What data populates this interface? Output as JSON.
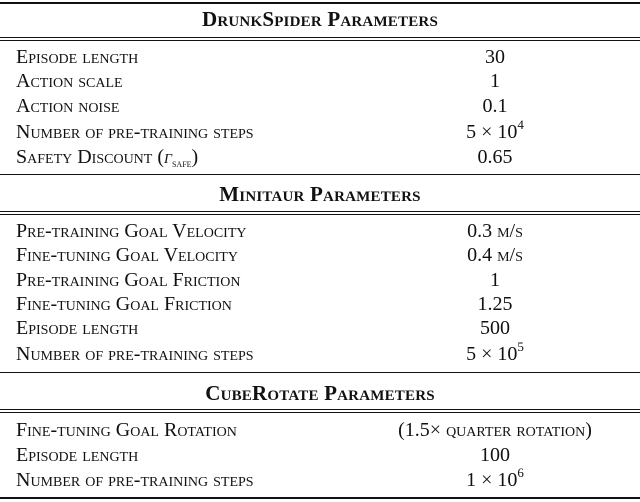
{
  "sections": [
    {
      "title": "DrunkSpider Parameters",
      "rows": [
        {
          "label": "Episode length",
          "value": "30"
        },
        {
          "label": "Action scale",
          "value": "1"
        },
        {
          "label": "Action noise",
          "value": "0.1"
        },
        {
          "label": "Number of pre-training steps",
          "value_base": "5 × 10",
          "value_exp": "4"
        },
        {
          "label_main": "Safety Discount (",
          "label_symbol": "γ",
          "label_sub": "safe",
          "label_close": ")",
          "value": "0.65"
        }
      ]
    },
    {
      "title": "Minitaur Parameters",
      "rows": [
        {
          "label": "Pre-training Goal Velocity",
          "value_num": "0.3",
          "value_unit": "m/s"
        },
        {
          "label": "Fine-tuning Goal Velocity",
          "value_num": "0.4",
          "value_unit": "m/s"
        },
        {
          "label": "Pre-training Goal Friction",
          "value": "1"
        },
        {
          "label": "Fine-tuning Goal Friction",
          "value": "1.25"
        },
        {
          "label": "Episode length",
          "value": "500"
        },
        {
          "label": "Number of pre-training steps",
          "value_base": "5 × 10",
          "value_exp": "5"
        }
      ]
    },
    {
      "title": "CubeRotate Parameters",
      "rows": [
        {
          "label": "Fine-tuning Goal Rotation",
          "value_open": "(1.5×",
          "value_unit": "quarter rotation)"
        },
        {
          "label": "Episode length",
          "value": "100"
        },
        {
          "label": "Number of pre-training steps",
          "value_base": "1 × 10",
          "value_exp": "6"
        }
      ]
    }
  ]
}
